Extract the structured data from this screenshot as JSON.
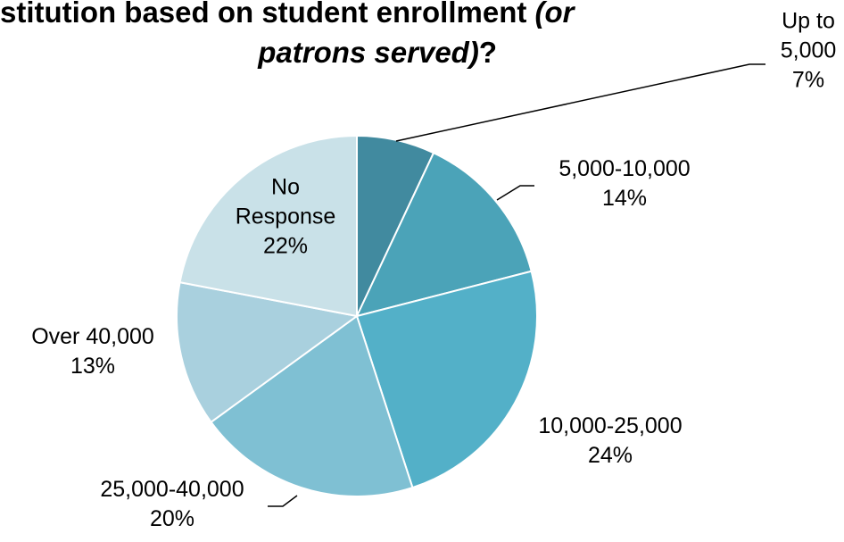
{
  "chart_data": {
    "type": "pie",
    "title": {
      "line1_bold": "stitution based on student enrollment ",
      "line1_italic": "(or",
      "line2_italic": "patrons served)",
      "line2_bold": "?"
    },
    "slices": [
      {
        "label_lines": [
          "Up to",
          "5,000"
        ],
        "percent_label": "7%",
        "value": 7,
        "color": "#418a9f"
      },
      {
        "label_lines": [
          "5,000-10,000"
        ],
        "percent_label": "14%",
        "value": 14,
        "color": "#4ba3b8"
      },
      {
        "label_lines": [
          "10,000-25,000"
        ],
        "percent_label": "24%",
        "value": 24,
        "color": "#53b0c8"
      },
      {
        "label_lines": [
          "25,000-40,000"
        ],
        "percent_label": "20%",
        "value": 20,
        "color": "#7fc0d3"
      },
      {
        "label_lines": [
          "Over 40,000"
        ],
        "percent_label": "13%",
        "value": 13,
        "color": "#a9d0de"
      },
      {
        "label_lines": [
          "No",
          "Response"
        ],
        "percent_label": "22%",
        "value": 22,
        "color": "#c9e1e8"
      }
    ]
  }
}
